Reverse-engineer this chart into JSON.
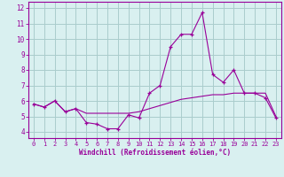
{
  "xlabel": "Windchill (Refroidissement éolien,°C)",
  "x": [
    0,
    1,
    2,
    3,
    4,
    5,
    6,
    7,
    8,
    9,
    10,
    11,
    12,
    13,
    14,
    15,
    16,
    17,
    18,
    19,
    20,
    21,
    22,
    23
  ],
  "line1": [
    5.8,
    5.6,
    6.0,
    5.3,
    5.5,
    4.6,
    4.5,
    4.2,
    4.2,
    5.1,
    4.9,
    6.5,
    7.0,
    9.5,
    10.3,
    10.3,
    11.7,
    7.7,
    7.2,
    8.0,
    6.5,
    6.5,
    6.2,
    4.9
  ],
  "line2": [
    5.8,
    5.6,
    6.0,
    5.3,
    5.5,
    5.2,
    5.2,
    5.2,
    5.2,
    5.2,
    5.3,
    5.5,
    5.7,
    5.9,
    6.1,
    6.2,
    6.3,
    6.4,
    6.4,
    6.5,
    6.5,
    6.5,
    6.5,
    5.0
  ],
  "line_color": "#990099",
  "bg_color": "#d9f0f0",
  "grid_color": "#aacccc",
  "ylim": [
    3.6,
    12.4
  ],
  "xlim": [
    -0.5,
    23.5
  ],
  "yticks": [
    4,
    5,
    6,
    7,
    8,
    9,
    10,
    11,
    12
  ],
  "xticks": [
    0,
    1,
    2,
    3,
    4,
    5,
    6,
    7,
    8,
    9,
    10,
    11,
    12,
    13,
    14,
    15,
    16,
    17,
    18,
    19,
    20,
    21,
    22,
    23
  ]
}
